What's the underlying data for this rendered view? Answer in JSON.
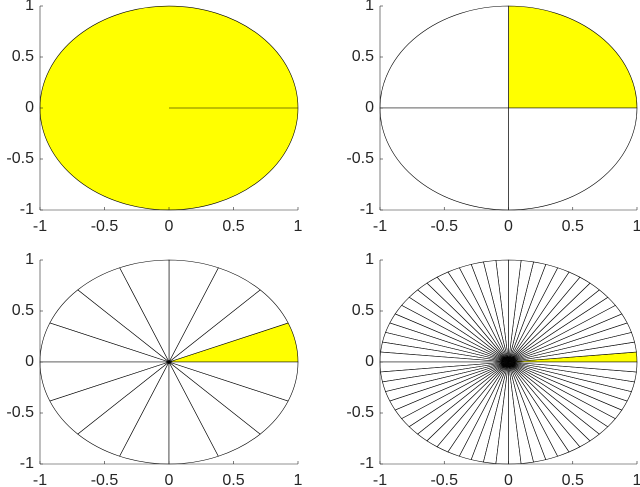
{
  "chart_data": [
    {
      "type": "pie",
      "values": [
        1
      ],
      "color": "#ffffff",
      "highlight_color": "#ffff00",
      "highlight": 0,
      "xlim": [
        -1,
        1
      ],
      "ylim": [
        -1,
        1
      ],
      "xticks": [
        -1,
        -0.5,
        0,
        0.5,
        1
      ],
      "yticks": [
        -1,
        -0.5,
        0,
        0.5,
        1
      ]
    },
    {
      "type": "pie",
      "values": [
        1,
        1,
        1,
        1
      ],
      "color": "#ffffff",
      "highlight_color": "#ffff00",
      "highlight": 0,
      "xlim": [
        -1,
        1
      ],
      "ylim": [
        -1,
        1
      ],
      "xticks": [
        -1,
        -0.5,
        0,
        0.5,
        1
      ],
      "yticks": [
        -1,
        -0.5,
        0,
        0.5,
        1
      ]
    },
    {
      "type": "pie",
      "values": [
        1,
        1,
        1,
        1,
        1,
        1,
        1,
        1,
        1,
        1,
        1,
        1,
        1,
        1,
        1,
        1
      ],
      "color": "#ffffff",
      "highlight_color": "#ffff00",
      "highlight": 0,
      "xlim": [
        -1,
        1
      ],
      "ylim": [
        -1,
        1
      ],
      "xticks": [
        -1,
        -0.5,
        0,
        0.5,
        1
      ],
      "yticks": [
        -1,
        -0.5,
        0,
        0.5,
        1
      ]
    },
    {
      "type": "pie",
      "values": [
        1,
        1,
        1,
        1,
        1,
        1,
        1,
        1,
        1,
        1,
        1,
        1,
        1,
        1,
        1,
        1,
        1,
        1,
        1,
        1,
        1,
        1,
        1,
        1,
        1,
        1,
        1,
        1,
        1,
        1,
        1,
        1,
        1,
        1,
        1,
        1,
        1,
        1,
        1,
        1,
        1,
        1,
        1,
        1,
        1,
        1,
        1,
        1,
        1,
        1,
        1,
        1,
        1,
        1,
        1,
        1,
        1,
        1,
        1,
        1,
        1,
        1,
        1,
        1
      ],
      "color": "#ffffff",
      "highlight_color": "#ffff00",
      "highlight": 0,
      "xlim": [
        -1,
        1
      ],
      "ylim": [
        -1,
        1
      ],
      "xticks": [
        -1,
        -0.5,
        0,
        0.5,
        1
      ],
      "yticks": [
        -1,
        -0.5,
        0,
        0.5,
        1
      ]
    }
  ]
}
